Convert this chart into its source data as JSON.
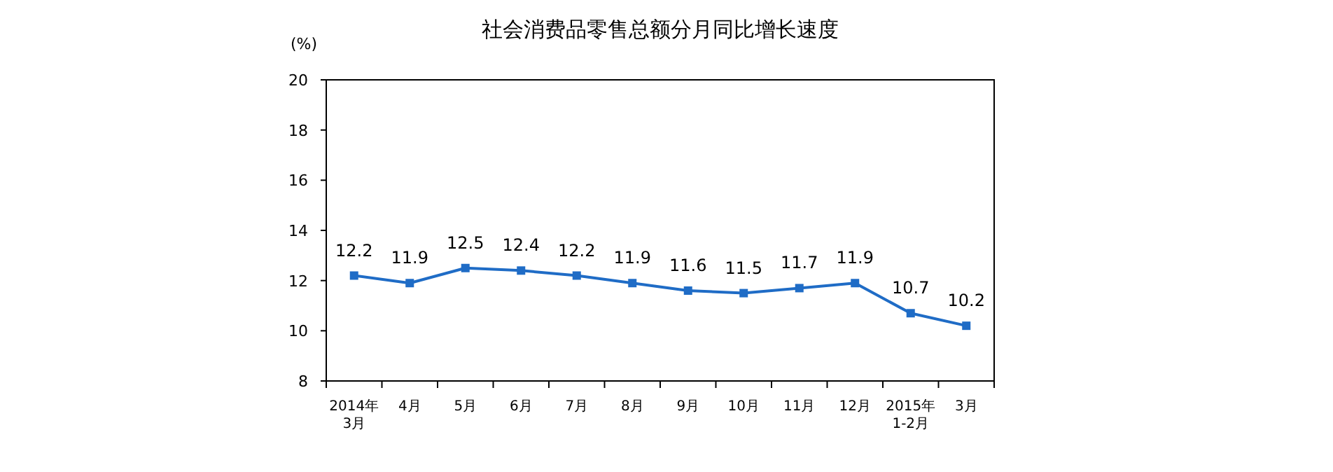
{
  "chart_data": {
    "type": "line",
    "title": "社会消费品零售总额分月同比增长速度",
    "ylabel": "(%)",
    "categories": [
      "2014年\n3月",
      "4月",
      "5月",
      "6月",
      "7月",
      "8月",
      "9月",
      "10月",
      "11月",
      "12月",
      "2015年\n1-2月",
      "3月"
    ],
    "series": [
      {
        "color": "#1f6cc6",
        "values": [
          12.2,
          11.9,
          12.5,
          12.4,
          12.2,
          11.9,
          11.6,
          11.5,
          11.7,
          11.9,
          10.7,
          10.2
        ]
      }
    ],
    "ylim": [
      8,
      20
    ],
    "yticks": [
      8,
      10,
      12,
      14,
      16,
      18,
      20
    ],
    "data_labels": true,
    "marker": "square",
    "line_style": "solid"
  }
}
